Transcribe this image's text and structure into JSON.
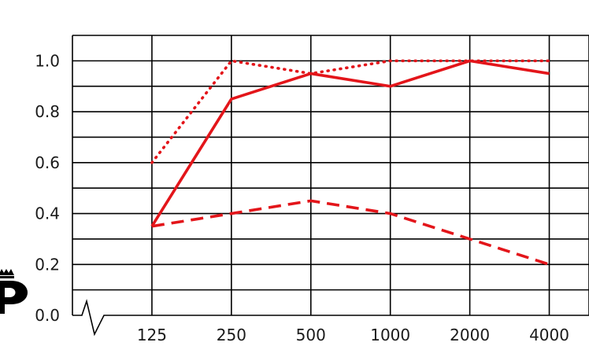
{
  "chart_data": {
    "type": "line",
    "categories": [
      "125",
      "250",
      "500",
      "1000",
      "2000",
      "4000"
    ],
    "y_ticks": [
      "0.0",
      "0.2",
      "0.4",
      "0.6",
      "0.8",
      "1.0"
    ],
    "ylim": [
      0,
      1.1
    ],
    "grid": true,
    "y_axis_break": true,
    "series": [
      {
        "style": "solid",
        "color": "#e3151a",
        "values": [
          0.35,
          0.85,
          0.95,
          0.9,
          1.0,
          0.95
        ]
      },
      {
        "style": "dotted",
        "color": "#e3151a",
        "values": [
          0.6,
          1.0,
          0.95,
          1.0,
          1.0,
          1.0
        ]
      },
      {
        "style": "dashed",
        "color": "#e3151a",
        "values": [
          0.35,
          0.4,
          0.45,
          0.4,
          0.3,
          0.2
        ]
      }
    ]
  },
  "logo": {
    "icon": "crowned-p-logo-icon",
    "color": "#000000"
  }
}
